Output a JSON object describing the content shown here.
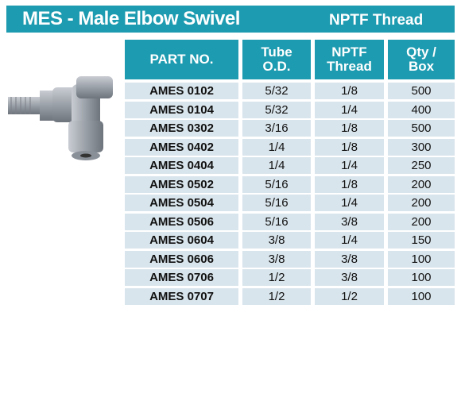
{
  "header": {
    "title": "MES - Male Elbow Swivel",
    "subtitle": "NPTF Thread"
  },
  "table": {
    "headers": [
      "PART NO.",
      "Tube O.D.",
      "NPTF Thread",
      "Qty / Box"
    ],
    "rows": [
      [
        "AMES 0102",
        "5/32",
        "1/8",
        "500"
      ],
      [
        "AMES 0104",
        "5/32",
        "1/4",
        "400"
      ],
      [
        "AMES 0302",
        "3/16",
        "1/8",
        "500"
      ],
      [
        "AMES 0402",
        "1/4",
        "1/8",
        "300"
      ],
      [
        "AMES 0404",
        "1/4",
        "1/4",
        "250"
      ],
      [
        "AMES 0502",
        "5/16",
        "1/8",
        "200"
      ],
      [
        "AMES 0504",
        "5/16",
        "1/4",
        "200"
      ],
      [
        "AMES 0506",
        "5/16",
        "3/8",
        "200"
      ],
      [
        "AMES 0604",
        "3/8",
        "1/4",
        "150"
      ],
      [
        "AMES 0606",
        "3/8",
        "3/8",
        "100"
      ],
      [
        "AMES 0706",
        "1/2",
        "3/8",
        "100"
      ],
      [
        "AMES 0707",
        "1/2",
        "1/2",
        "100"
      ]
    ]
  }
}
